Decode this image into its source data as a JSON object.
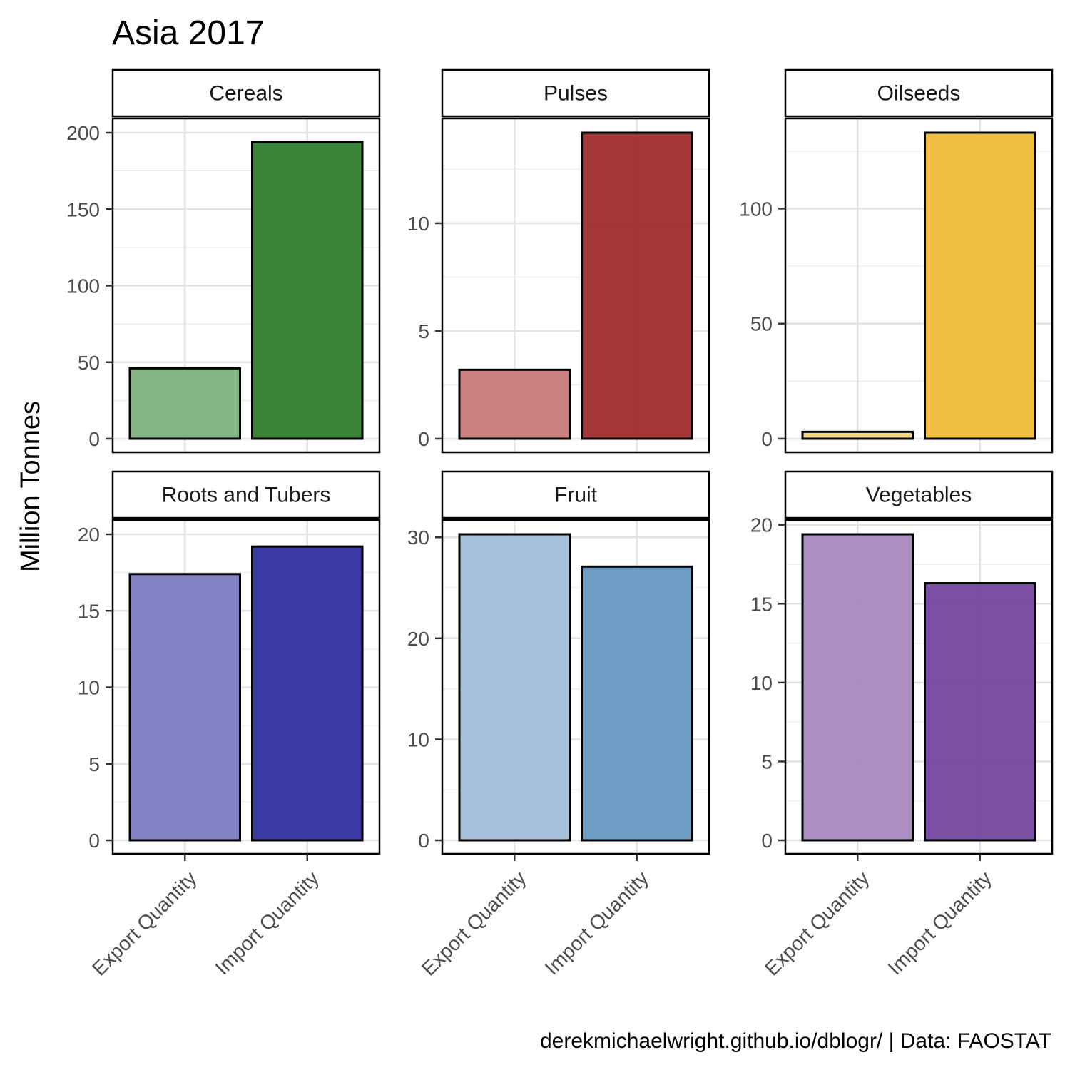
{
  "title": "Asia 2017",
  "ylabel": "Million Tonnes",
  "caption": "derekmichaelwright.github.io/dblogr/ | Data: FAOSTAT",
  "chart_data": [
    {
      "type": "bar",
      "facet": "Cereals",
      "categories": [
        "Export Quantity",
        "Import Quantity"
      ],
      "values": [
        46,
        194
      ],
      "colors": [
        "#80b27e",
        "#337f32"
      ],
      "ylim": [
        0,
        200
      ],
      "yticks": [
        0,
        50,
        100,
        150,
        200
      ]
    },
    {
      "type": "bar",
      "facet": "Pulses",
      "categories": [
        "Export Quantity",
        "Import Quantity"
      ],
      "values": [
        3.2,
        14.2
      ],
      "colors": [
        "#c67d7a",
        "#a02f31"
      ],
      "ylim": [
        0,
        14.2
      ],
      "yticks": [
        0,
        5,
        10
      ]
    },
    {
      "type": "bar",
      "facet": "Oilseeds",
      "categories": [
        "Export Quantity",
        "Import Quantity"
      ],
      "values": [
        3,
        133
      ],
      "colors": [
        "#f3d37f",
        "#efbc3d"
      ],
      "ylim": [
        0,
        133
      ],
      "yticks": [
        0,
        50,
        100
      ]
    },
    {
      "type": "bar",
      "facet": "Roots and Tubers",
      "categories": [
        "Export Quantity",
        "Import Quantity"
      ],
      "values": [
        17.4,
        19.2
      ],
      "colors": [
        "#807fc3",
        "#3434a0"
      ],
      "ylim": [
        0,
        20
      ],
      "yticks": [
        0,
        5,
        10,
        15,
        20
      ]
    },
    {
      "type": "bar",
      "facet": "Fruit",
      "categories": [
        "Export Quantity",
        "Import Quantity"
      ],
      "values": [
        30.3,
        27.1
      ],
      "colors": [
        "#a3bfdb",
        "#6a9cc5"
      ],
      "ylim": [
        0,
        30.3
      ],
      "yticks": [
        0,
        10,
        20,
        30
      ]
    },
    {
      "type": "bar",
      "facet": "Vegetables",
      "categories": [
        "Export Quantity",
        "Import Quantity"
      ],
      "values": [
        19.4,
        16.3
      ],
      "colors": [
        "#a98ac3",
        "#7749a1"
      ],
      "ylim": [
        0,
        19.4
      ],
      "yticks": [
        0,
        5,
        10,
        15,
        20
      ]
    }
  ]
}
